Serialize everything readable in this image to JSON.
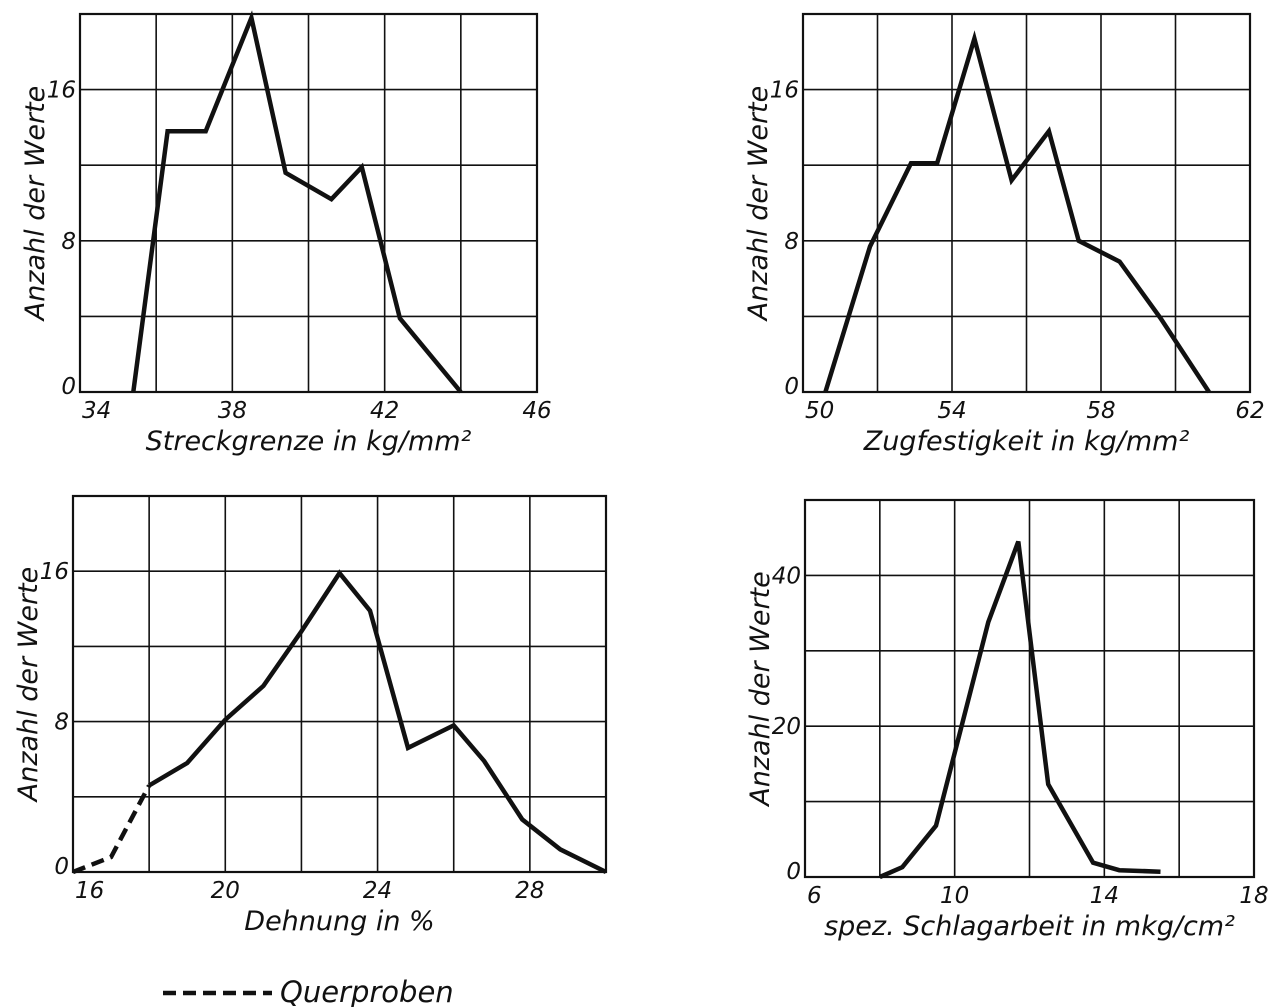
{
  "colors": {
    "ink": "#111111",
    "paper": "#ffffff"
  },
  "legend": {
    "dashed_label": "Querproben"
  },
  "chart_data": [
    {
      "type": "line",
      "xlabel": "Streckgrenze in kg/mm²",
      "ylabel": "Anzahl der Werte",
      "xlim": [
        34,
        46
      ],
      "ylim": [
        0,
        20
      ],
      "x_ticks": [
        34,
        38,
        42,
        46
      ],
      "x_tick_labels": [
        "34",
        "38",
        "42",
        "46"
      ],
      "y_ticks": [
        0,
        8,
        16
      ],
      "y_tick_labels": [
        "0",
        "8",
        "16"
      ],
      "grid": true,
      "series": [
        {
          "style": "solid",
          "x": [
            35.4,
            36.3,
            37.3,
            38.5,
            39.4,
            40.6,
            41.4,
            42.4,
            44.0
          ],
          "y": [
            0,
            13.8,
            13.8,
            19.8,
            11.6,
            10.2,
            11.9,
            3.9,
            0
          ]
        }
      ]
    },
    {
      "type": "line",
      "xlabel": "Zugfestigkeit in kg/mm²",
      "ylabel": "Anzahl der Werte",
      "xlim": [
        50,
        62
      ],
      "ylim": [
        0,
        20
      ],
      "x_ticks": [
        50,
        54,
        58,
        62
      ],
      "x_tick_labels": [
        "50",
        "54",
        "58",
        "62"
      ],
      "y_ticks": [
        0,
        8,
        16
      ],
      "y_tick_labels": [
        "0",
        "8",
        "16"
      ],
      "grid": true,
      "series": [
        {
          "style": "solid",
          "x": [
            50.6,
            51.8,
            52.9,
            53.6,
            54.6,
            55.6,
            56.6,
            57.4,
            58.5,
            59.6,
            60.9
          ],
          "y": [
            0,
            7.7,
            12.1,
            12.1,
            18.7,
            11.2,
            13.8,
            8.0,
            6.9,
            3.9,
            0
          ]
        }
      ]
    },
    {
      "type": "line",
      "xlabel": "Dehnung in %",
      "ylabel": "Anzahl der Werte",
      "xlim": [
        16,
        30
      ],
      "ylim": [
        0,
        20
      ],
      "x_ticks": [
        16,
        20,
        24,
        28
      ],
      "x_tick_labels": [
        "16",
        "20",
        "24",
        "28"
      ],
      "y_ticks": [
        0,
        8,
        16
      ],
      "y_tick_labels": [
        "0",
        "8",
        "16"
      ],
      "grid": true,
      "series": [
        {
          "style": "dashed",
          "x": [
            16.0,
            17.0,
            18.0
          ],
          "y": [
            0,
            0.8,
            4.6
          ]
        },
        {
          "style": "solid",
          "x": [
            18.0,
            19.0,
            20.0,
            21.0,
            22.0,
            23.0,
            23.8,
            24.8,
            26.0,
            26.8,
            27.8,
            28.8,
            30.0
          ],
          "y": [
            4.6,
            5.8,
            8.1,
            9.9,
            12.8,
            15.9,
            13.9,
            6.6,
            7.8,
            5.9,
            2.8,
            1.2,
            0
          ]
        }
      ]
    },
    {
      "type": "line",
      "xlabel": "spez. Schlagarbeit in mkg/cm²",
      "ylabel": "Anzahl der Werte",
      "xlim": [
        6,
        18
      ],
      "ylim": [
        0,
        50
      ],
      "x_ticks": [
        6,
        10,
        14,
        18
      ],
      "x_tick_labels": [
        "6",
        "10",
        "14",
        "18"
      ],
      "y_ticks": [
        0,
        20,
        40
      ],
      "y_tick_labels": [
        "0",
        "20",
        "40"
      ],
      "grid": true,
      "series": [
        {
          "style": "solid",
          "x": [
            8.0,
            8.6,
            9.5,
            10.9,
            11.7,
            12.5,
            13.7,
            14.4,
            15.5
          ],
          "y": [
            0,
            1.3,
            6.8,
            33.8,
            44.5,
            12.3,
            1.9,
            0.9,
            0.7
          ]
        }
      ]
    }
  ]
}
